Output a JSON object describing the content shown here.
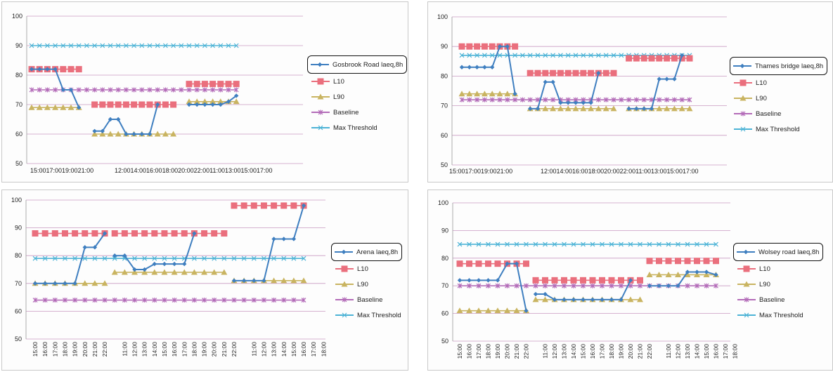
{
  "colors": {
    "iaeq": "#3f7fc0",
    "l10": "#ea6f7d",
    "l90": "#c9b461",
    "baseline": "#b36bb8",
    "max_threshold": "#4cb3d6",
    "grid": "#c99ac2"
  },
  "chart_data": [
    {
      "type": "line",
      "title": "",
      "ylim": [
        50,
        100
      ],
      "yticks": [
        50,
        60,
        70,
        80,
        90,
        100
      ],
      "x_labels": [
        "15:0017:0019:0021:00",
        "12:0014:0016:0018:0020:0022:0011:0013:0015:0017:00"
      ],
      "legend_position": "right",
      "baseline": 75,
      "max_threshold": 90,
      "series": [
        {
          "name": "Gosbrook Road laeq,8h",
          "segments": [
            [
              82,
              82,
              82,
              82,
              75,
              75,
              69
            ],
            [
              61,
              61,
              65,
              65,
              60,
              60,
              60,
              60,
              70
            ],
            [
              70,
              70,
              70,
              70,
              70,
              71,
              73
            ]
          ]
        },
        {
          "name": "L10",
          "segments": [
            [
              82,
              82,
              82,
              82,
              82,
              82,
              82
            ],
            [
              70,
              70,
              70,
              70,
              70,
              70,
              70,
              70,
              70,
              70,
              70
            ],
            [
              77,
              77,
              77,
              77,
              77,
              77,
              77
            ]
          ]
        },
        {
          "name": "L90",
          "segments": [
            [
              69,
              69,
              69,
              69,
              69,
              69,
              69
            ],
            [
              60,
              60,
              60,
              60,
              60,
              60,
              60,
              60,
              60,
              60,
              60
            ],
            [
              71,
              71,
              71,
              71,
              71,
              71,
              71
            ]
          ]
        },
        {
          "name": "Baseline"
        },
        {
          "name": "Max Threshold"
        }
      ]
    },
    {
      "type": "line",
      "title": "",
      "ylim": [
        50,
        100
      ],
      "yticks": [
        50,
        60,
        70,
        80,
        90,
        100
      ],
      "x_labels": [
        "15:0017:0019:0021:00",
        "12:0014:0016:0018:0020:0022:0011:0013:0015:0017:00"
      ],
      "legend_position": "right",
      "baseline": 72,
      "max_threshold": 87,
      "series": [
        {
          "name": "Thames bridge laeq,8h",
          "segments": [
            [
              83,
              83,
              83,
              83,
              83,
              90,
              90,
              74
            ],
            [
              69,
              69,
              78,
              78,
              71,
              71,
              71,
              71,
              71,
              81
            ],
            [
              69,
              69,
              69,
              69,
              79,
              79,
              79,
              87
            ]
          ]
        },
        {
          "name": "L10",
          "segments": [
            [
              90,
              90,
              90,
              90,
              90,
              90,
              90,
              90
            ],
            [
              81,
              81,
              81,
              81,
              81,
              81,
              81,
              81,
              81,
              81,
              81,
              81
            ],
            [
              86,
              86,
              86,
              86,
              86,
              86,
              86,
              86,
              86
            ]
          ]
        },
        {
          "name": "L90",
          "segments": [
            [
              74,
              74,
              74,
              74,
              74,
              74,
              74,
              74
            ],
            [
              69,
              69,
              69,
              69,
              69,
              69,
              69,
              69,
              69,
              69,
              69,
              69
            ],
            [
              69,
              69,
              69,
              69,
              69,
              69,
              69,
              69,
              69
            ]
          ]
        },
        {
          "name": "Baseline"
        },
        {
          "name": "Max Threshold"
        }
      ]
    },
    {
      "type": "line",
      "title": "",
      "ylim": [
        50,
        100
      ],
      "yticks": [
        50,
        60,
        70,
        80,
        90,
        100
      ],
      "x_labels": [
        "15:00",
        "16:00",
        "17:00",
        "18:00",
        "19:00",
        "20:00",
        "21:00",
        "22:00",
        "",
        "11:00",
        "12:00",
        "13:00",
        "14:00",
        "15:00",
        "16:00",
        "17:00",
        "18:00",
        "19:00",
        "20:00",
        "21:00",
        "22:00",
        "",
        "11:00",
        "12:00",
        "13:00",
        "14:00",
        "15:00",
        "16:00",
        "17:00",
        "18:00"
      ],
      "legend_position": "right",
      "baseline": 64,
      "max_threshold": 79,
      "series": [
        {
          "name": "Arena laeq,8h",
          "segments": [
            [
              70,
              70,
              70,
              70,
              70,
              83,
              83,
              88
            ],
            [
              80,
              80,
              75,
              75,
              77,
              77,
              77,
              77,
              88
            ],
            [
              71,
              71,
              71,
              71,
              86,
              86,
              86,
              98
            ]
          ]
        },
        {
          "name": "L10",
          "segments": [
            [
              88,
              88,
              88,
              88,
              88,
              88,
              88,
              88
            ],
            [
              88,
              88,
              88,
              88,
              88,
              88,
              88,
              88,
              88,
              88,
              88,
              88
            ],
            [
              98,
              98,
              98,
              98,
              98,
              98,
              98,
              98
            ]
          ]
        },
        {
          "name": "L90",
          "segments": [
            [
              70,
              70,
              70,
              70,
              70,
              70,
              70,
              70
            ],
            [
              74,
              74,
              74,
              74,
              74,
              74,
              74,
              74,
              74,
              74,
              74,
              74
            ],
            [
              71,
              71,
              71,
              71,
              71,
              71,
              71,
              71
            ]
          ]
        },
        {
          "name": "Baseline"
        },
        {
          "name": "Max Threshold"
        }
      ]
    },
    {
      "type": "line",
      "title": "",
      "ylim": [
        50,
        100
      ],
      "yticks": [
        50,
        60,
        70,
        80,
        90,
        100
      ],
      "x_labels": [
        "15:00",
        "16:00",
        "17:00",
        "18:00",
        "19:00",
        "20:00",
        "21:00",
        "22:00",
        "",
        "11:00",
        "12:00",
        "13:00",
        "14:00",
        "15:00",
        "16:00",
        "17:00",
        "18:00",
        "19:00",
        "20:00",
        "21:00",
        "22:00",
        "",
        "11:00",
        "12:00",
        "13:00",
        "14:00",
        "15:00",
        "16:00",
        "17:00",
        "18:00"
      ],
      "legend_position": "right",
      "baseline": 70,
      "max_threshold": 85,
      "series": [
        {
          "name": "Wolsey road laeq,8h",
          "segments": [
            [
              72,
              72,
              72,
              72,
              72,
              78,
              78,
              61
            ],
            [
              67,
              67,
              65,
              65,
              65,
              65,
              65,
              65,
              65,
              65,
              72
            ],
            [
              70,
              70,
              70,
              70,
              75,
              75,
              75,
              74
            ]
          ]
        },
        {
          "name": "L10",
          "segments": [
            [
              78,
              78,
              78,
              78,
              78,
              78,
              78,
              78
            ],
            [
              72,
              72,
              72,
              72,
              72,
              72,
              72,
              72,
              72,
              72,
              72,
              72
            ],
            [
              79,
              79,
              79,
              79,
              79,
              79,
              79,
              79
            ]
          ]
        },
        {
          "name": "L90",
          "segments": [
            [
              61,
              61,
              61,
              61,
              61,
              61,
              61,
              61
            ],
            [
              65,
              65,
              65,
              65,
              65,
              65,
              65,
              65,
              65,
              65,
              65,
              65
            ],
            [
              74,
              74,
              74,
              74,
              74,
              74,
              74,
              74
            ]
          ]
        },
        {
          "name": "Baseline"
        },
        {
          "name": "Max Threshold"
        }
      ]
    }
  ]
}
